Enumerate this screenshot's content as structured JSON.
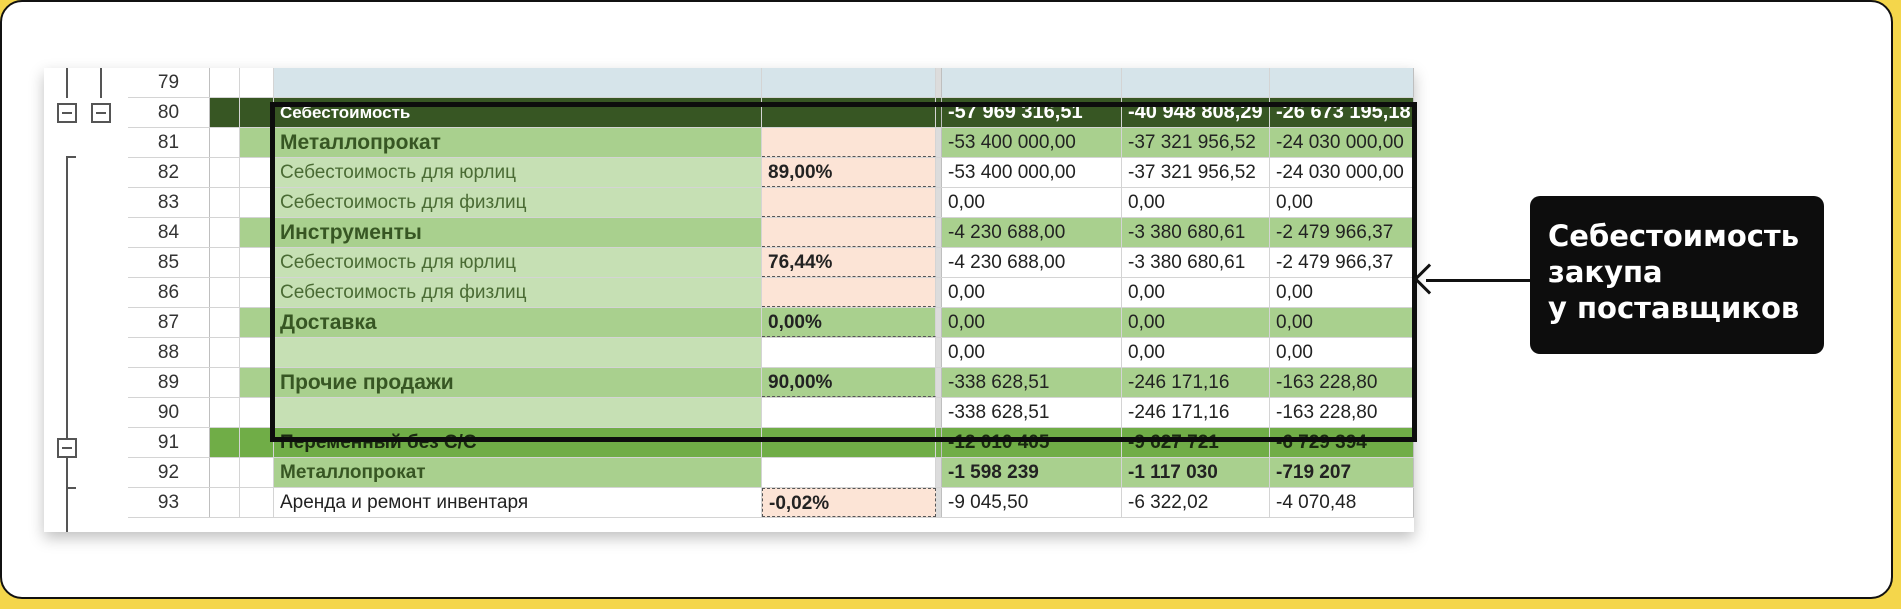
{
  "callout": {
    "lines": [
      "Себестоимость",
      "закупа",
      "у поставщиков"
    ]
  },
  "colors": {
    "dark_green": "#375623",
    "mid_green": "#a9d08e",
    "light_green": "#c6e0b4",
    "green_band": "#70ad47",
    "peach": "#fce4d6",
    "header_blue": "#d6e4ea"
  },
  "rows": [
    {
      "num": "79",
      "label": "",
      "pct": "",
      "v1": "",
      "v2": "",
      "v3": ""
    },
    {
      "num": "80",
      "label": "Себестоимость",
      "pct": "",
      "v1": "-57 969 316,51",
      "v2": "-40 948 808,29",
      "v3": "-26 673 195,18"
    },
    {
      "num": "81",
      "label": "Металлопрокат",
      "pct": "",
      "v1": "-53 400 000,00",
      "v2": "-37 321 956,52",
      "v3": "-24 030 000,00"
    },
    {
      "num": "82",
      "label": "Себестоимость для юрлиц",
      "pct": "89,00%",
      "v1": "-53 400 000,00",
      "v2": "-37 321 956,52",
      "v3": "-24 030 000,00"
    },
    {
      "num": "83",
      "label": "Себестоимость для физлиц",
      "pct": "",
      "v1": "0,00",
      "v2": "0,00",
      "v3": "0,00"
    },
    {
      "num": "84",
      "label": "Инструменты",
      "pct": "",
      "v1": "-4 230 688,00",
      "v2": "-3 380 680,61",
      "v3": "-2 479 966,37"
    },
    {
      "num": "85",
      "label": "Себестоимость для юрлиц",
      "pct": "76,44%",
      "v1": "-4 230 688,00",
      "v2": "-3 380 680,61",
      "v3": "-2 479 966,37"
    },
    {
      "num": "86",
      "label": "Себестоимость для физлиц",
      "pct": "",
      "v1": "0,00",
      "v2": "0,00",
      "v3": "0,00"
    },
    {
      "num": "87",
      "label": "Доставка",
      "pct": "0,00%",
      "v1": "0,00",
      "v2": "0,00",
      "v3": "0,00"
    },
    {
      "num": "88",
      "label": "",
      "pct": "",
      "v1": "0,00",
      "v2": "0,00",
      "v3": "0,00"
    },
    {
      "num": "89",
      "label": "Прочие продажи",
      "pct": "90,00%",
      "v1": "-338 628,51",
      "v2": "-246 171,16",
      "v3": "-163 228,80"
    },
    {
      "num": "90",
      "label": "",
      "pct": "",
      "v1": "-338 628,51",
      "v2": "-246 171,16",
      "v3": "-163 228,80"
    },
    {
      "num": "91",
      "label": "Переменный без С/С",
      "pct": "",
      "v1": "-12 010 405",
      "v2": "-9 627 721",
      "v3": "-6 729 394"
    },
    {
      "num": "92",
      "label": "Металлопрокат",
      "pct": "",
      "v1": "-1 598 239",
      "v2": "-1 117 030",
      "v3": "-719 207"
    },
    {
      "num": "93",
      "label": "Аренда и ремонт инвентаря",
      "pct": "-0,02%",
      "v1": "-9 045,50",
      "v2": "-6 322,02",
      "v3": "-4 070,48"
    }
  ]
}
